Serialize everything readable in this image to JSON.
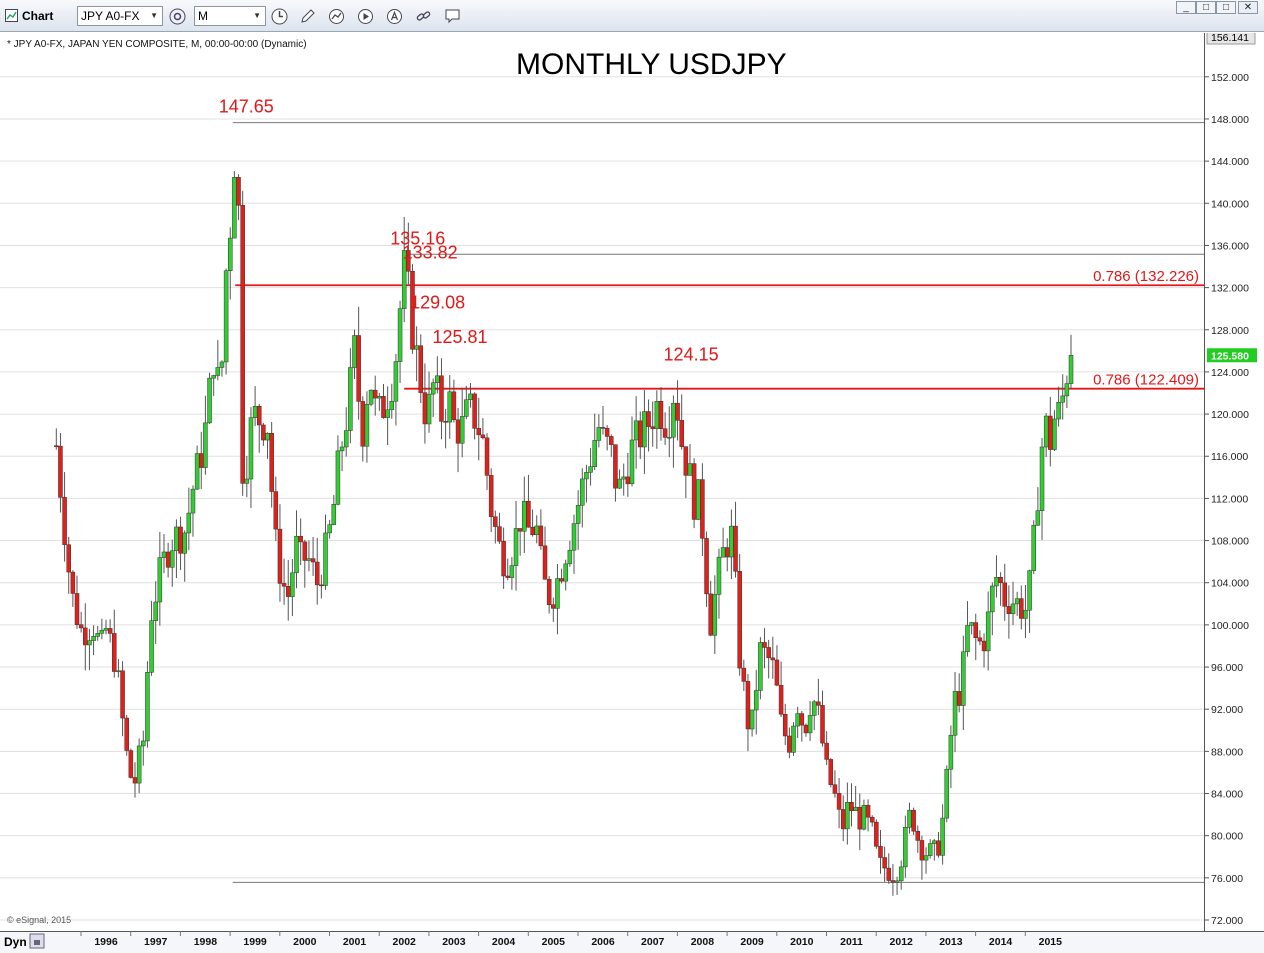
{
  "toolbar": {
    "title": "Chart",
    "symbol": "JPY A0-FX",
    "interval": "M",
    "window_buttons": [
      "_",
      "□",
      "✕"
    ]
  },
  "chart_info": "* JPY A0-FX, JAPAN YEN COMPOSITE, M, 00:00-00:00 (Dynamic)",
  "copyright": "© eSignal, 2015",
  "status": {
    "dyn_label": "Dyn"
  },
  "colors": {
    "up": "#33cc33",
    "down": "#e0201b",
    "annotation": "#e01818",
    "grid_line": "#e0e0e0"
  },
  "chart_data": {
    "type": "candlestick",
    "title": "MONTHLY USDJPY",
    "ylim": [
      71,
      157.4
    ],
    "y_ticks": [
      "72.000",
      "76.000",
      "80.000",
      "84.000",
      "88.000",
      "92.000",
      "96.000",
      "100.000",
      "104.000",
      "108.000",
      "112.000",
      "116.000",
      "120.000",
      "124.000",
      "128.000",
      "132.000",
      "136.000",
      "140.000",
      "144.000",
      "148.000",
      "152.000"
    ],
    "x_ticks": [
      "1996",
      "1997",
      "1998",
      "1999",
      "2000",
      "2001",
      "2002",
      "2003",
      "2004",
      "2005",
      "2006",
      "2007",
      "2008",
      "2009",
      "2010",
      "2011",
      "2012",
      "2013",
      "2014",
      "2015"
    ],
    "top_price_badge": "156.141",
    "last_price_badge": "125.580",
    "last_price": 125.58,
    "annotations": [
      {
        "text": "147.65",
        "x": 1998.55,
        "y": 147.65
      },
      {
        "text": "135.16",
        "x": 2002.0,
        "y": 135.16
      },
      {
        "text": "133.82",
        "x": 2002.25,
        "y": 133.82
      },
      {
        "text": "129.08",
        "x": 2002.4,
        "y": 129.08
      },
      {
        "text": "125.81",
        "x": 2002.85,
        "y": 125.81
      },
      {
        "text": "124.15",
        "x": 2007.5,
        "y": 124.15
      }
    ],
    "horizontal_lines": [
      {
        "y": 147.65,
        "x_start": 1998.55,
        "color": "#777777",
        "label": ""
      },
      {
        "y": 135.16,
        "x_start": 2002.0,
        "color": "#777777",
        "label": ""
      },
      {
        "y": 132.226,
        "x_start": 1998.6,
        "color": "#e01818",
        "label": "0.786 (132.226)"
      },
      {
        "y": 122.409,
        "x_start": 2002.0,
        "color": "#e01818",
        "label": "0.786 (122.409)"
      },
      {
        "y": 75.57,
        "x_start": 1998.55,
        "color": "#777777",
        "label": ""
      }
    ],
    "anchors": [
      [
        1995.0,
        117.0
      ],
      [
        1995.3,
        103.0
      ],
      [
        1995.5,
        99.5
      ],
      [
        1995.75,
        100.0
      ],
      [
        1995.9,
        97.5
      ],
      [
        1996.0,
        99.5
      ],
      [
        1996.2,
        96.5
      ],
      [
        1996.4,
        88.0
      ],
      [
        1996.55,
        84.5
      ],
      [
        1996.75,
        89.0
      ],
      [
        1996.9,
        101.0
      ],
      [
        1997.1,
        105.0
      ],
      [
        1997.3,
        108.0
      ],
      [
        1997.45,
        108.5
      ],
      [
        1997.6,
        109.0
      ],
      [
        1997.75,
        113.0
      ],
      [
        1997.95,
        117.0
      ],
      [
        1998.05,
        120.0
      ],
      [
        1998.15,
        126.0
      ],
      [
        1998.3,
        121.5
      ],
      [
        1998.42,
        134.0
      ],
      [
        1998.5,
        138.0
      ],
      [
        1998.58,
        144.5
      ],
      [
        1998.67,
        139.0
      ],
      [
        1998.75,
        115.0
      ],
      [
        1998.85,
        116.0
      ],
      [
        1998.95,
        120.0
      ],
      [
        1999.1,
        119.5
      ],
      [
        1999.25,
        119.0
      ],
      [
        1999.4,
        108.0
      ],
      [
        1999.55,
        104.0
      ],
      [
        1999.7,
        102.5
      ],
      [
        1999.8,
        108.0
      ],
      [
        1999.9,
        106.0
      ],
      [
        2000.05,
        106.5
      ],
      [
        2000.25,
        104.0
      ],
      [
        2000.4,
        106.5
      ],
      [
        2000.55,
        110.0
      ],
      [
        2000.7,
        116.0
      ],
      [
        2000.85,
        120.0
      ],
      [
        2001.0,
        126.0
      ],
      [
        2001.15,
        118.0
      ],
      [
        2001.3,
        124.0
      ],
      [
        2001.45,
        119.5
      ],
      [
        2001.6,
        121.0
      ],
      [
        2001.8,
        124.0
      ],
      [
        2001.9,
        129.0
      ],
      [
        2001.98,
        134.0
      ],
      [
        2002.05,
        133.0
      ],
      [
        2002.15,
        128.5
      ],
      [
        2002.3,
        124.0
      ],
      [
        2002.45,
        119.5
      ],
      [
        2002.6,
        123.0
      ],
      [
        2002.75,
        120.0
      ],
      [
        2002.9,
        121.5
      ],
      [
        2003.0,
        119.0
      ],
      [
        2003.15,
        118.5
      ],
      [
        2003.3,
        120.5
      ],
      [
        2003.45,
        119.5
      ],
      [
        2003.6,
        117.0
      ],
      [
        2003.75,
        111.0
      ],
      [
        2003.9,
        107.5
      ],
      [
        2004.05,
        106.0
      ],
      [
        2004.2,
        107.5
      ],
      [
        2004.35,
        110.5
      ],
      [
        2004.5,
        109.0
      ],
      [
        2004.65,
        109.5
      ],
      [
        2004.8,
        104.0
      ],
      [
        2004.95,
        102.5
      ],
      [
        2005.1,
        104.5
      ],
      [
        2005.3,
        108.0
      ],
      [
        2005.45,
        110.5
      ],
      [
        2005.6,
        113.5
      ],
      [
        2005.75,
        116.0
      ],
      [
        2005.9,
        119.0
      ],
      [
        2006.0,
        117.5
      ],
      [
        2006.15,
        116.5
      ],
      [
        2006.3,
        112.5
      ],
      [
        2006.45,
        114.5
      ],
      [
        2006.6,
        117.0
      ],
      [
        2006.75,
        118.0
      ],
      [
        2006.9,
        119.0
      ],
      [
        2007.1,
        121.0
      ],
      [
        2007.3,
        119.0
      ],
      [
        2007.45,
        123.0
      ],
      [
        2007.55,
        118.0
      ],
      [
        2007.7,
        115.0
      ],
      [
        2007.85,
        111.5
      ],
      [
        2007.95,
        112.0
      ],
      [
        2008.05,
        106.5
      ],
      [
        2008.15,
        100.0
      ],
      [
        2008.3,
        104.0
      ],
      [
        2008.45,
        107.5
      ],
      [
        2008.6,
        108.5
      ],
      [
        2008.75,
        97.0
      ],
      [
        2008.9,
        91.0
      ],
      [
        2009.0,
        90.5
      ],
      [
        2009.15,
        97.5
      ],
      [
        2009.3,
        97.0
      ],
      [
        2009.45,
        95.5
      ],
      [
        2009.6,
        90.0
      ],
      [
        2009.75,
        89.0
      ],
      [
        2009.9,
        93.0
      ],
      [
        2010.05,
        90.0
      ],
      [
        2010.2,
        93.5
      ],
      [
        2010.35,
        91.0
      ],
      [
        2010.5,
        86.0
      ],
      [
        2010.65,
        84.0
      ],
      [
        2010.8,
        80.5
      ],
      [
        2010.95,
        83.0
      ],
      [
        2011.1,
        82.0
      ],
      [
        2011.25,
        81.5
      ],
      [
        2011.4,
        80.5
      ],
      [
        2011.55,
        77.0
      ],
      [
        2011.7,
        77.0
      ],
      [
        2011.85,
        76.5
      ],
      [
        2011.97,
        77.5
      ],
      [
        2012.1,
        80.0
      ],
      [
        2012.2,
        82.5
      ],
      [
        2012.35,
        79.5
      ],
      [
        2012.5,
        78.5
      ],
      [
        2012.65,
        78.0
      ],
      [
        2012.8,
        80.0
      ],
      [
        2012.95,
        86.5
      ],
      [
        2013.05,
        92.5
      ],
      [
        2013.2,
        94.0
      ],
      [
        2013.35,
        100.0
      ],
      [
        2013.45,
        99.0
      ],
      [
        2013.55,
        98.0
      ],
      [
        2013.7,
        99.0
      ],
      [
        2013.85,
        103.5
      ],
      [
        2013.95,
        105.0
      ],
      [
        2014.05,
        102.5
      ],
      [
        2014.2,
        102.5
      ],
      [
        2014.35,
        102.0
      ],
      [
        2014.5,
        101.5
      ],
      [
        2014.6,
        104.0
      ],
      [
        2014.7,
        109.5
      ],
      [
        2014.8,
        116.0
      ],
      [
        2014.9,
        119.0
      ],
      [
        2015.0,
        117.5
      ],
      [
        2015.1,
        120.0
      ],
      [
        2015.2,
        120.0
      ],
      [
        2015.33,
        124.0
      ],
      [
        2015.45,
        125.58
      ]
    ]
  }
}
